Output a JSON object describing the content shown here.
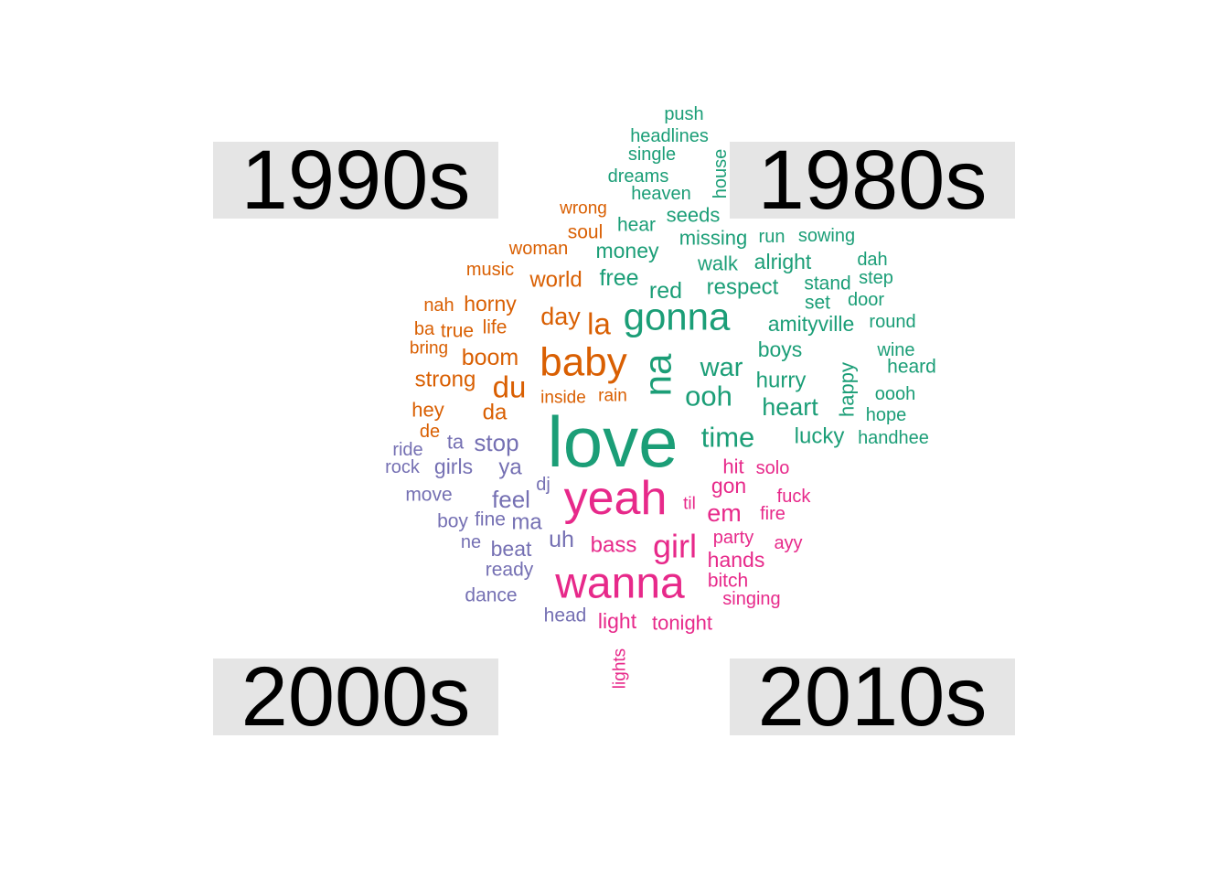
{
  "chart_data": {
    "type": "wordcloud",
    "groups": [
      {
        "name": "1990s",
        "color": "#d95f02",
        "quadrant": "top-left"
      },
      {
        "name": "1980s",
        "color": "#1b9e77",
        "quadrant": "top-right"
      },
      {
        "name": "2000s",
        "color": "#7570b3",
        "quadrant": "bottom-left"
      },
      {
        "name": "2010s",
        "color": "#e7298a",
        "quadrant": "bottom-right"
      }
    ],
    "words": [
      {
        "word": "push",
        "group": "1980s"
      },
      {
        "word": "headlines",
        "group": "1980s"
      },
      {
        "word": "single",
        "group": "1980s"
      },
      {
        "word": "house",
        "group": "1980s",
        "rotate": true
      },
      {
        "word": "dreams",
        "group": "1980s"
      },
      {
        "word": "heaven",
        "group": "1980s"
      },
      {
        "word": "hear",
        "group": "1980s"
      },
      {
        "word": "seeds",
        "group": "1980s"
      },
      {
        "word": "missing",
        "group": "1980s"
      },
      {
        "word": "run",
        "group": "1980s"
      },
      {
        "word": "sowing",
        "group": "1980s"
      },
      {
        "word": "money",
        "group": "1980s"
      },
      {
        "word": "walk",
        "group": "1980s"
      },
      {
        "word": "alright",
        "group": "1980s"
      },
      {
        "word": "dah",
        "group": "1980s"
      },
      {
        "word": "free",
        "group": "1980s"
      },
      {
        "word": "stand",
        "group": "1980s"
      },
      {
        "word": "step",
        "group": "1980s"
      },
      {
        "word": "red",
        "group": "1980s"
      },
      {
        "word": "respect",
        "group": "1980s"
      },
      {
        "word": "set",
        "group": "1980s"
      },
      {
        "word": "door",
        "group": "1980s"
      },
      {
        "word": "gonna",
        "group": "1980s"
      },
      {
        "word": "amityville",
        "group": "1980s"
      },
      {
        "word": "round",
        "group": "1980s"
      },
      {
        "word": "na",
        "group": "1980s",
        "rotate": true
      },
      {
        "word": "boys",
        "group": "1980s"
      },
      {
        "word": "wine",
        "group": "1980s"
      },
      {
        "word": "war",
        "group": "1980s"
      },
      {
        "word": "happy",
        "group": "1980s",
        "rotate": true
      },
      {
        "word": "heard",
        "group": "1980s"
      },
      {
        "word": "hurry",
        "group": "1980s"
      },
      {
        "word": "ooh",
        "group": "1980s"
      },
      {
        "word": "oooh",
        "group": "1980s"
      },
      {
        "word": "heart",
        "group": "1980s"
      },
      {
        "word": "hope",
        "group": "1980s"
      },
      {
        "word": "love",
        "group": "1980s"
      },
      {
        "word": "time",
        "group": "1980s"
      },
      {
        "word": "lucky",
        "group": "1980s"
      },
      {
        "word": "handhee",
        "group": "1980s"
      },
      {
        "word": "wrong",
        "group": "1990s"
      },
      {
        "word": "soul",
        "group": "1990s"
      },
      {
        "word": "woman",
        "group": "1990s"
      },
      {
        "word": "music",
        "group": "1990s"
      },
      {
        "word": "world",
        "group": "1990s"
      },
      {
        "word": "nah",
        "group": "1990s"
      },
      {
        "word": "horny",
        "group": "1990s"
      },
      {
        "word": "day",
        "group": "1990s"
      },
      {
        "word": "la",
        "group": "1990s"
      },
      {
        "word": "ba",
        "group": "1990s"
      },
      {
        "word": "true",
        "group": "1990s"
      },
      {
        "word": "life",
        "group": "1990s"
      },
      {
        "word": "bring",
        "group": "1990s"
      },
      {
        "word": "baby",
        "group": "1990s"
      },
      {
        "word": "boom",
        "group": "1990s"
      },
      {
        "word": "strong",
        "group": "1990s"
      },
      {
        "word": "du",
        "group": "1990s"
      },
      {
        "word": "inside",
        "group": "1990s"
      },
      {
        "word": "rain",
        "group": "1990s"
      },
      {
        "word": "hey",
        "group": "1990s"
      },
      {
        "word": "da",
        "group": "1990s"
      },
      {
        "word": "de",
        "group": "1990s"
      },
      {
        "word": "ta",
        "group": "2000s"
      },
      {
        "word": "stop",
        "group": "2000s"
      },
      {
        "word": "ride",
        "group": "2000s"
      },
      {
        "word": "rock",
        "group": "2000s"
      },
      {
        "word": "girls",
        "group": "2000s"
      },
      {
        "word": "ya",
        "group": "2000s"
      },
      {
        "word": "dj",
        "group": "2000s"
      },
      {
        "word": "move",
        "group": "2000s"
      },
      {
        "word": "feel",
        "group": "2000s"
      },
      {
        "word": "boy",
        "group": "2000s"
      },
      {
        "word": "fine",
        "group": "2000s"
      },
      {
        "word": "ma",
        "group": "2000s"
      },
      {
        "word": "uh",
        "group": "2000s"
      },
      {
        "word": "ne",
        "group": "2000s"
      },
      {
        "word": "beat",
        "group": "2000s"
      },
      {
        "word": "ready",
        "group": "2000s"
      },
      {
        "word": "dance",
        "group": "2000s"
      },
      {
        "word": "head",
        "group": "2000s"
      },
      {
        "word": "hit",
        "group": "2010s"
      },
      {
        "word": "solo",
        "group": "2010s"
      },
      {
        "word": "gon",
        "group": "2010s"
      },
      {
        "word": "yeah",
        "group": "2010s"
      },
      {
        "word": "til",
        "group": "2010s"
      },
      {
        "word": "fuck",
        "group": "2010s"
      },
      {
        "word": "em",
        "group": "2010s"
      },
      {
        "word": "fire",
        "group": "2010s"
      },
      {
        "word": "party",
        "group": "2010s"
      },
      {
        "word": "ayy",
        "group": "2010s"
      },
      {
        "word": "girl",
        "group": "2010s"
      },
      {
        "word": "bass",
        "group": "2010s"
      },
      {
        "word": "hands",
        "group": "2010s"
      },
      {
        "word": "wanna",
        "group": "2010s"
      },
      {
        "word": "bitch",
        "group": "2010s"
      },
      {
        "word": "singing",
        "group": "2010s"
      },
      {
        "word": "light",
        "group": "2010s"
      },
      {
        "word": "tonight",
        "group": "2010s"
      },
      {
        "word": "lights",
        "group": "2010s",
        "rotate": true
      }
    ]
  }
}
